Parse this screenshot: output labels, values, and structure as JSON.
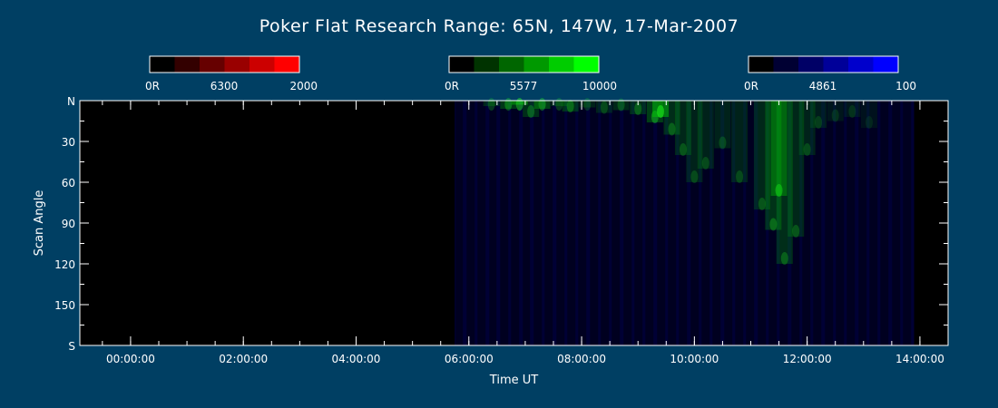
{
  "title": "Poker Flat Research Range: 65N, 147W, 17-Mar-2007",
  "colorbars": [
    {
      "min_label": "0R",
      "wavelength_label": "6300",
      "max_label": "2000",
      "colors": [
        "#000000",
        "#330000",
        "#660000",
        "#990000",
        "#cc0000",
        "#ff0000"
      ]
    },
    {
      "min_label": "0R",
      "wavelength_label": "5577",
      "max_label": "10000",
      "colors": [
        "#000000",
        "#003300",
        "#006600",
        "#009900",
        "#00cc00",
        "#00ff00"
      ]
    },
    {
      "min_label": "0R",
      "wavelength_label": "4861",
      "max_label": "100",
      "colors": [
        "#000000",
        "#000033",
        "#000066",
        "#000099",
        "#0000cc",
        "#0000ff"
      ]
    }
  ],
  "chart_data": {
    "type": "heatmap",
    "title": "Poker Flat Research Range: 65N, 147W, 17-Mar-2007",
    "xlabel": "Time UT",
    "ylabel": "Scan Angle",
    "x_unit": "hours UT",
    "xlim": [
      -0.9,
      14.5
    ],
    "ylim": [
      0,
      180
    ],
    "y_inverted": true,
    "x_ticks": [
      {
        "value": 0,
        "label": "00:00:00"
      },
      {
        "value": 2,
        "label": "02:00:00"
      },
      {
        "value": 4,
        "label": "04:00:00"
      },
      {
        "value": 6,
        "label": "06:00:00"
      },
      {
        "value": 8,
        "label": "08:00:00"
      },
      {
        "value": 10,
        "label": "10:00:00"
      },
      {
        "value": 12,
        "label": "12:00:00"
      },
      {
        "value": 14,
        "label": "14:00:00"
      }
    ],
    "y_ticks": [
      {
        "value": 0,
        "label": "N"
      },
      {
        "value": 30,
        "label": "30"
      },
      {
        "value": 60,
        "label": "60"
      },
      {
        "value": 90,
        "label": "90"
      },
      {
        "value": 120,
        "label": "120"
      },
      {
        "value": 150,
        "label": "150"
      },
      {
        "value": 180,
        "label": "S"
      }
    ],
    "data_start_hour": 5.75,
    "data_end_hour": 13.9,
    "series": [
      {
        "channel": "5577",
        "color": "#00cc00",
        "points": [
          [
            6.4,
            4,
            0.35
          ],
          [
            6.7,
            6,
            0.5
          ],
          [
            6.9,
            3,
            0.75
          ],
          [
            7.1,
            12,
            0.4
          ],
          [
            7.3,
            6,
            0.55
          ],
          [
            7.6,
            4,
            0.35
          ],
          [
            7.8,
            8,
            0.45
          ],
          [
            8.1,
            5,
            0.3
          ],
          [
            8.4,
            9,
            0.3
          ],
          [
            8.7,
            7,
            0.35
          ],
          [
            9.0,
            10,
            0.4
          ],
          [
            9.3,
            16,
            0.55
          ],
          [
            9.4,
            12,
            0.85
          ],
          [
            9.6,
            25,
            0.4
          ],
          [
            9.8,
            40,
            0.35
          ],
          [
            10.0,
            60,
            0.3
          ],
          [
            10.2,
            50,
            0.3
          ],
          [
            10.5,
            35,
            0.3
          ],
          [
            10.8,
            60,
            0.3
          ],
          [
            11.2,
            80,
            0.35
          ],
          [
            11.4,
            95,
            0.45
          ],
          [
            11.5,
            70,
            0.65
          ],
          [
            11.6,
            120,
            0.4
          ],
          [
            11.8,
            100,
            0.35
          ],
          [
            12.0,
            40,
            0.3
          ],
          [
            12.2,
            20,
            0.25
          ],
          [
            12.5,
            15,
            0.2
          ],
          [
            12.8,
            12,
            0.2
          ],
          [
            13.1,
            20,
            0.15
          ]
        ]
      }
    ]
  }
}
